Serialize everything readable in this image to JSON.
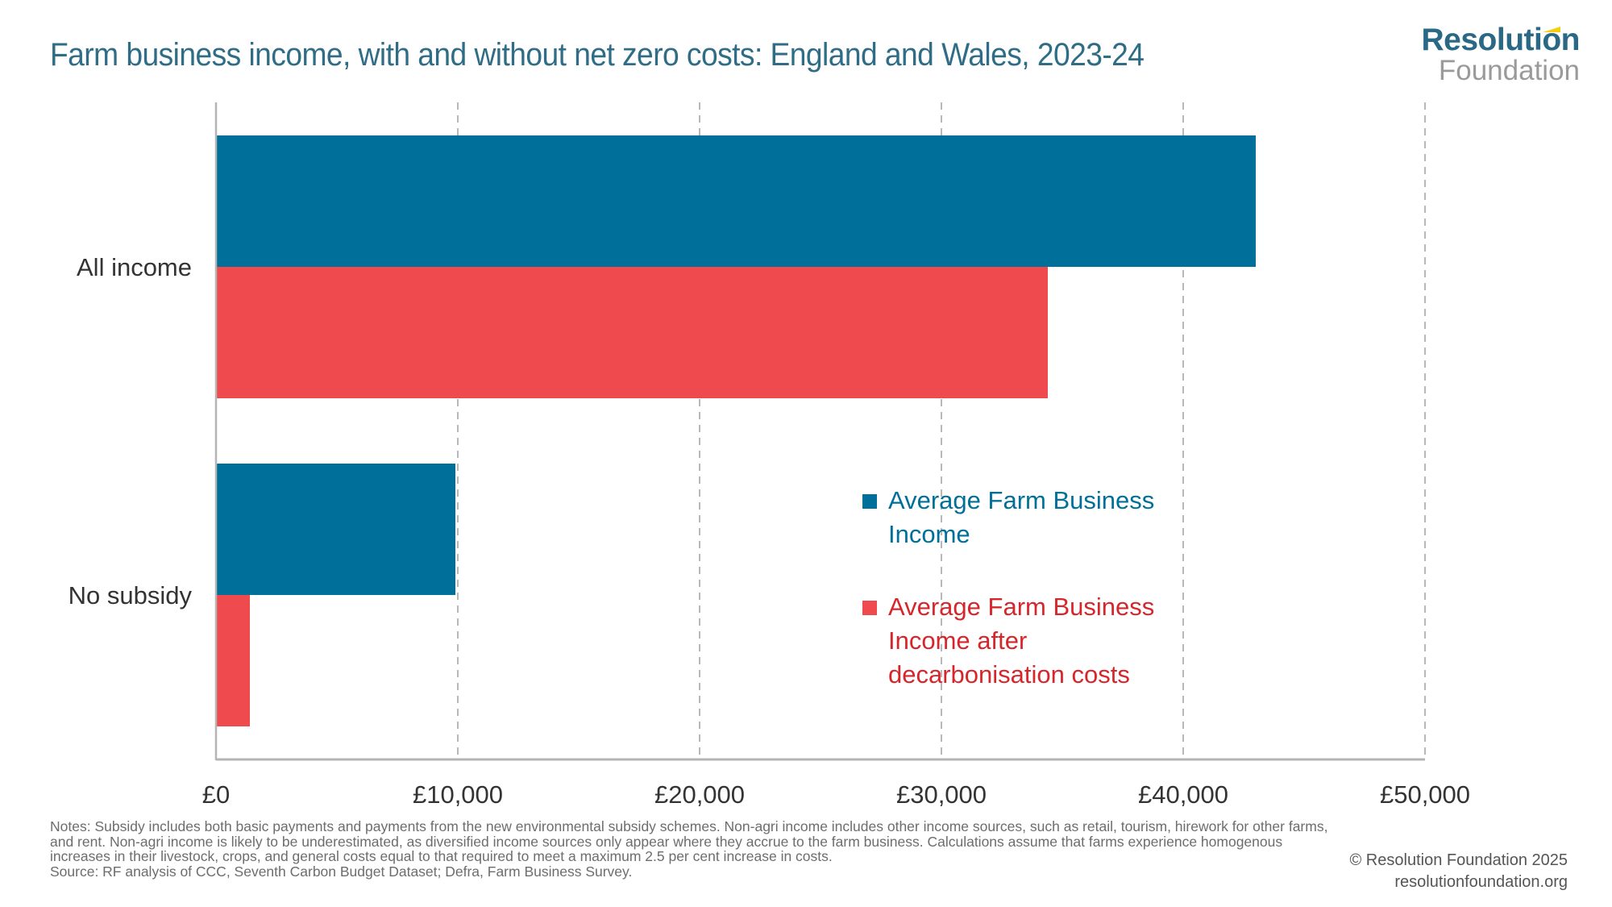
{
  "title": "Farm business income, with and without net zero costs: England and Wales, 2023-24",
  "logo": {
    "top": "Resolution",
    "bottom": "Foundation"
  },
  "colors": {
    "series1": "#00709a",
    "series2": "#ef4b4f",
    "title": "#2f6d86",
    "legend2_text": "#d7262b",
    "grid": "#b8b8b8"
  },
  "chart_data": {
    "type": "bar",
    "orientation": "horizontal",
    "title": "Farm business income, with and without net zero costs: England and Wales, 2023-24",
    "categories": [
      "All income",
      "No subsidy"
    ],
    "series": [
      {
        "name": "Average Farm Business Income",
        "values": [
          43000,
          9900
        ]
      },
      {
        "name": "Average Farm Business Income after decarbonisation costs",
        "values": [
          34400,
          1400
        ]
      }
    ],
    "xlim": [
      0,
      50000
    ],
    "xticks": [
      0,
      10000,
      20000,
      30000,
      40000,
      50000
    ],
    "xtick_labels": [
      "£0",
      "£10,000",
      "£20,000",
      "£30,000",
      "£40,000",
      "£50,000"
    ],
    "xlabel": "",
    "ylabel": "",
    "grid": "vertical dashed",
    "legend_position": "center-right inside plot"
  },
  "legend": [
    {
      "label": "Average Farm Business Income"
    },
    {
      "label": "Average Farm Business Income after decarbonisation costs"
    }
  ],
  "notes": {
    "notes_text": "Notes: Subsidy includes both basic payments and payments from the new environmental subsidy schemes. Non-agri income includes other income sources, such as retail, tourism, hirework for other farms, and rent. Non-agri income is likely to be underestimated, as diversified income sources only appear where they accrue to the farm business. Calculations assume that farms experience homogenous increases in their livestock, crops, and general costs equal to that required to meet a maximum 2.5 per cent increase in costs.",
    "source_text": "Source: RF analysis of CCC, Seventh Carbon Budget Dataset; Defra, Farm Business Survey."
  },
  "copyright": {
    "line1": "© Resolution Foundation 2025",
    "line2": "resolutionfoundation.org"
  }
}
